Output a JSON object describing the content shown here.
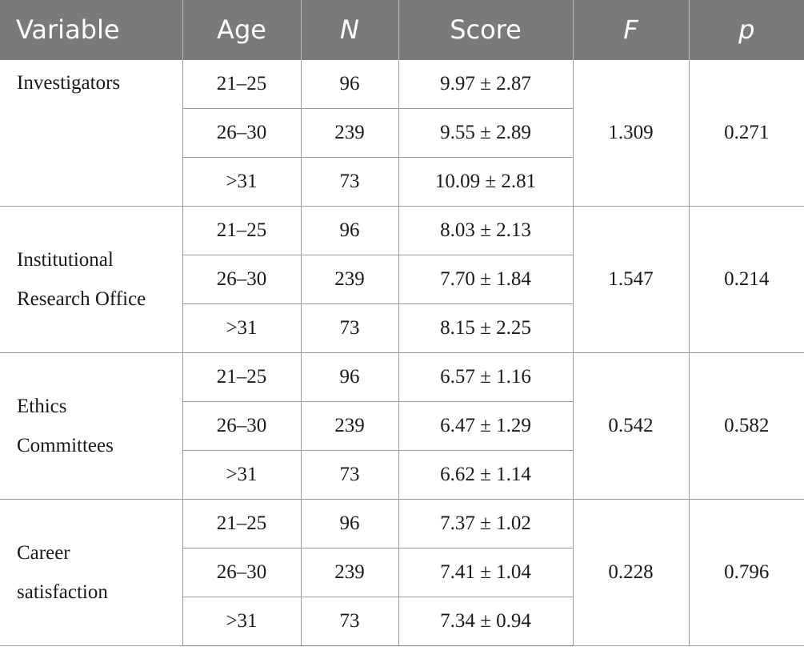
{
  "table": {
    "headers": [
      {
        "label": "Variable",
        "italic": false
      },
      {
        "label": "Age",
        "italic": false
      },
      {
        "label": "N",
        "italic": true
      },
      {
        "label": "Score",
        "italic": false
      },
      {
        "label": "F",
        "italic": true
      },
      {
        "label": "p",
        "italic": true
      }
    ],
    "groups": [
      {
        "variable_lines": [
          "Investigators"
        ],
        "F": "1.309",
        "p": "0.271",
        "rows": [
          {
            "age": "21–25",
            "n": "96",
            "score": "9.97 ± 2.87"
          },
          {
            "age": "26–30",
            "n": "239",
            "score": "9.55 ± 2.89"
          },
          {
            "age": ">31",
            "n": "73",
            "score": "10.09 ± 2.81"
          }
        ]
      },
      {
        "variable_lines": [
          "Institutional",
          "Research Office"
        ],
        "F": "1.547",
        "p": "0.214",
        "rows": [
          {
            "age": "21–25",
            "n": "96",
            "score": "8.03 ± 2.13"
          },
          {
            "age": "26–30",
            "n": "239",
            "score": "7.70 ± 1.84"
          },
          {
            "age": ">31",
            "n": "73",
            "score": "8.15 ± 2.25"
          }
        ]
      },
      {
        "variable_lines": [
          "Ethics",
          "Committees"
        ],
        "F": "0.542",
        "p": "0.582",
        "rows": [
          {
            "age": "21–25",
            "n": "96",
            "score": "6.57 ± 1.16"
          },
          {
            "age": "26–30",
            "n": "239",
            "score": "6.47 ± 1.29"
          },
          {
            "age": ">31",
            "n": "73",
            "score": "6.62 ± 1.14"
          }
        ]
      },
      {
        "variable_lines": [
          "Career",
          "satisfaction"
        ],
        "F": "0.228",
        "p": "0.796",
        "rows": [
          {
            "age": "21–25",
            "n": "96",
            "score": "7.37 ± 1.02"
          },
          {
            "age": "26–30",
            "n": "239",
            "score": "7.41 ± 1.04"
          },
          {
            "age": ">31",
            "n": "73",
            "score": "7.34 ± 0.94"
          }
        ]
      }
    ]
  }
}
